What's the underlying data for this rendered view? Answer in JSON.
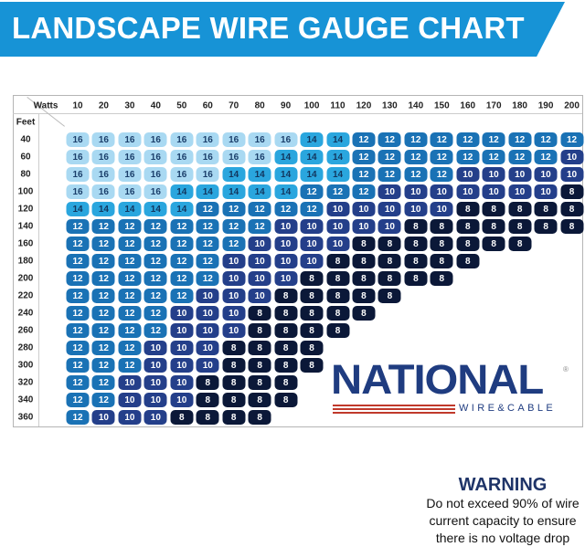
{
  "header": {
    "title": "LANDSCAPE WIRE GAUGE CHART"
  },
  "chart_data": {
    "type": "table",
    "title": "LANDSCAPE WIRE GAUGE CHART",
    "xlabel": "Watts",
    "ylabel": "Feet",
    "watts": [
      10,
      20,
      30,
      40,
      50,
      60,
      70,
      80,
      90,
      100,
      110,
      120,
      130,
      140,
      150,
      160,
      170,
      180,
      190,
      200
    ],
    "feet": [
      40,
      60,
      80,
      100,
      120,
      140,
      160,
      180,
      200,
      220,
      240,
      260,
      280,
      300,
      320,
      340,
      360
    ],
    "gauge": [
      [
        16,
        16,
        16,
        16,
        16,
        16,
        16,
        16,
        16,
        14,
        14,
        12,
        12,
        12,
        12,
        12,
        12,
        12,
        12,
        12
      ],
      [
        16,
        16,
        16,
        16,
        16,
        16,
        16,
        16,
        14,
        14,
        14,
        12,
        12,
        12,
        12,
        12,
        12,
        12,
        12,
        10
      ],
      [
        16,
        16,
        16,
        16,
        16,
        16,
        14,
        14,
        14,
        14,
        14,
        12,
        12,
        12,
        12,
        10,
        10,
        10,
        10,
        10
      ],
      [
        16,
        16,
        16,
        16,
        14,
        14,
        14,
        14,
        14,
        12,
        12,
        12,
        10,
        10,
        10,
        10,
        10,
        10,
        10,
        8
      ],
      [
        14,
        14,
        14,
        14,
        14,
        12,
        12,
        12,
        12,
        12,
        10,
        10,
        10,
        10,
        10,
        8,
        8,
        8,
        8,
        8
      ],
      [
        12,
        12,
        12,
        12,
        12,
        12,
        12,
        12,
        10,
        10,
        10,
        10,
        10,
        8,
        8,
        8,
        8,
        8,
        8,
        8
      ],
      [
        12,
        12,
        12,
        12,
        12,
        12,
        12,
        10,
        10,
        10,
        10,
        8,
        8,
        8,
        8,
        8,
        8,
        8
      ],
      [
        12,
        12,
        12,
        12,
        12,
        12,
        10,
        10,
        10,
        10,
        8,
        8,
        8,
        8,
        8,
        8
      ],
      [
        12,
        12,
        12,
        12,
        12,
        12,
        10,
        10,
        10,
        8,
        8,
        8,
        8,
        8,
        8
      ],
      [
        12,
        12,
        12,
        12,
        12,
        10,
        10,
        10,
        8,
        8,
        8,
        8,
        8
      ],
      [
        12,
        12,
        12,
        12,
        10,
        10,
        10,
        8,
        8,
        8,
        8,
        8
      ],
      [
        12,
        12,
        12,
        12,
        10,
        10,
        10,
        8,
        8,
        8,
        8
      ],
      [
        12,
        12,
        12,
        10,
        10,
        10,
        8,
        8,
        8,
        8
      ],
      [
        12,
        12,
        12,
        10,
        10,
        10,
        8,
        8,
        8,
        8
      ],
      [
        12,
        12,
        10,
        10,
        10,
        8,
        8,
        8,
        8
      ],
      [
        12,
        12,
        10,
        10,
        10,
        8,
        8,
        8,
        8
      ],
      [
        12,
        10,
        10,
        10,
        8,
        8,
        8,
        8
      ]
    ],
    "gauge_colors": {
      "16": "#a9d9f2",
      "14": "#2aa6de",
      "12": "#1a72b5",
      "10": "#243f8a",
      "8": "#0b1838"
    },
    "text_colors": {
      "16": "#1b3f6b",
      "14": "#12365e",
      "12": "#ffffff",
      "10": "#ffffff",
      "8": "#ffffff"
    }
  },
  "logo": {
    "name": "NATIONAL",
    "sub": "WIRE&CABLE",
    "reg": "®"
  },
  "warning": {
    "title": "WARNING",
    "lines": [
      "Do not exceed 90% of wire",
      "current capacity to ensure",
      "there is no voltage drop"
    ]
  }
}
